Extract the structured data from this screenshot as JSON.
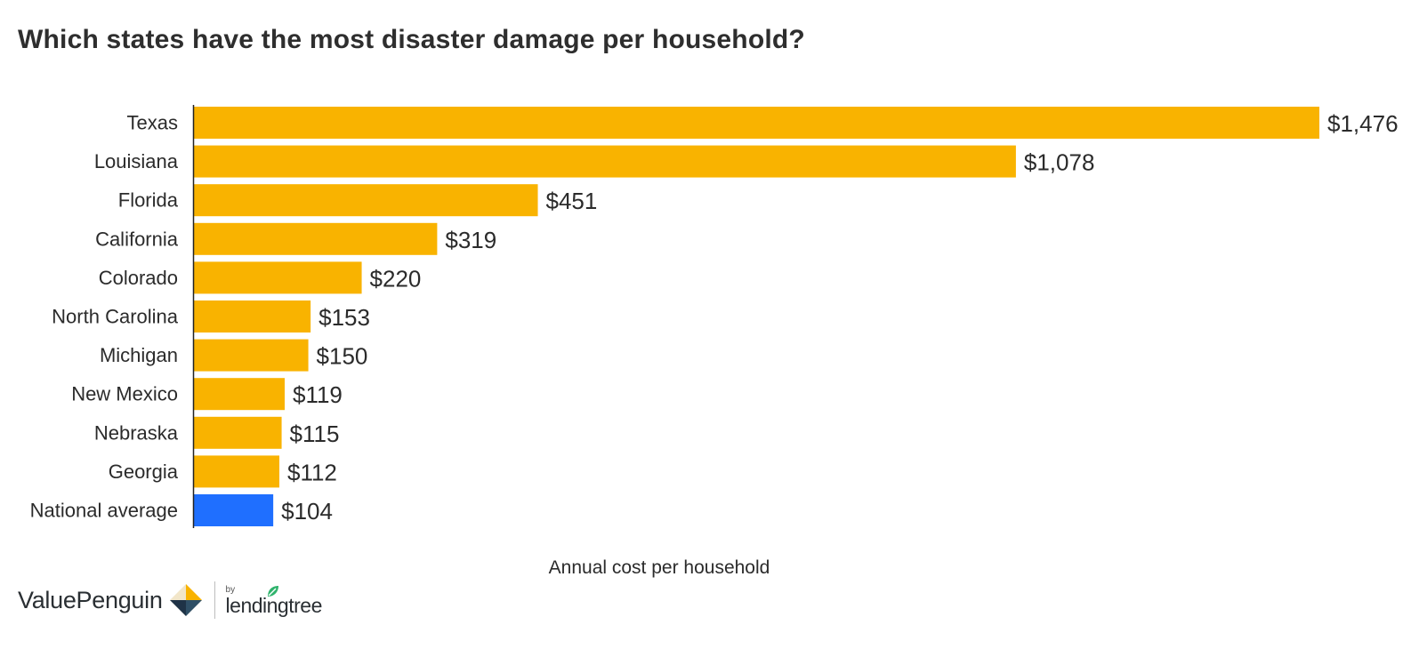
{
  "title": "Which states have the most disaster damage per household?",
  "chart_data": {
    "type": "bar",
    "orientation": "horizontal",
    "title": "Which states have the most disaster damage per household?",
    "xlabel": "Annual cost per household",
    "ylabel": "",
    "xlim": [
      0,
      1476
    ],
    "grid": false,
    "categories": [
      "Texas",
      "Louisiana",
      "Florida",
      "California",
      "Colorado",
      "North Carolina",
      "Michigan",
      "New Mexico",
      "Nebraska",
      "Georgia",
      "National average"
    ],
    "values": [
      1476,
      1078,
      451,
      319,
      220,
      153,
      150,
      119,
      115,
      112,
      104
    ],
    "value_labels": [
      "$1,476",
      "$1,078",
      "$451",
      "$319",
      "$220",
      "$153",
      "$150",
      "$119",
      "$115",
      "$112",
      "$104"
    ],
    "colors": {
      "state": "#f9b300",
      "national_average": "#1f6fff",
      "axis": "#222222"
    },
    "highlight_index": 10
  },
  "branding": {
    "brand_name": "ValuePenguin",
    "by_label": "by",
    "partner_name": "lendingtree"
  }
}
